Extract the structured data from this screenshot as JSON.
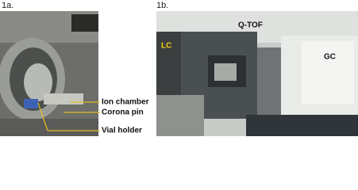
{
  "panels": [
    {
      "label": "1a.",
      "annotations": [
        "Ion chamber",
        "Corona pin",
        "Vial holder"
      ]
    },
    {
      "label": "1b.",
      "annotations": [
        "LC",
        "Q-TOF",
        "GC"
      ]
    }
  ]
}
